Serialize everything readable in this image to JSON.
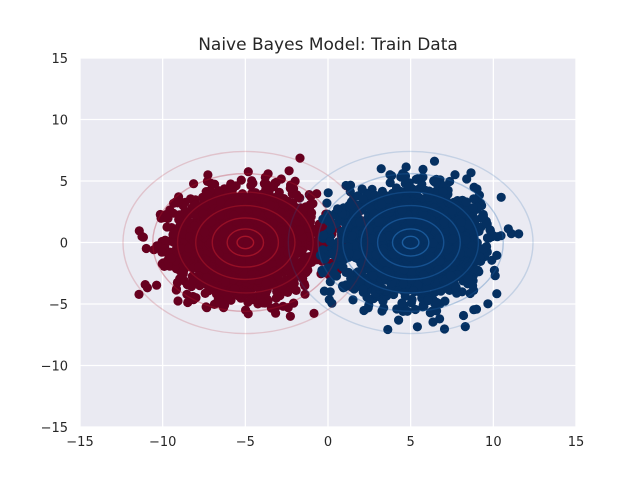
{
  "chart_data": {
    "type": "scatter",
    "title": "Naive Bayes Model: Train Data",
    "xlabel": "",
    "ylabel": "",
    "xlim": [
      -15,
      15
    ],
    "ylim": [
      -15,
      15
    ],
    "xticks": [
      -15,
      -10,
      -5,
      0,
      5,
      10,
      15
    ],
    "yticks": [
      -15,
      -10,
      -5,
      0,
      5,
      10,
      15
    ],
    "xtick_labels": [
      "−15",
      "−10",
      "−5",
      "0",
      "5",
      "10",
      "15"
    ],
    "ytick_labels": [
      "−15",
      "−10",
      "−5",
      "0",
      "5",
      "10",
      "15"
    ],
    "grid": true,
    "background_color": "#eaeaf2",
    "grid_color": "#ffffff",
    "series": [
      {
        "color": "#67001f",
        "center": [
          -5,
          0
        ],
        "spread": [
          2.0,
          2.0
        ],
        "extent_x": [
          -13,
          2
        ],
        "extent_y": [
          -7.5,
          8
        ],
        "contour_color": "#b2182b",
        "contour_radii": [
          0.5,
          1.1,
          2.0,
          3.0,
          4.1,
          5.6,
          7.4
        ]
      },
      {
        "color": "#053061",
        "center": [
          5,
          0
        ],
        "spread": [
          2.0,
          2.0
        ],
        "extent_x": [
          -0.5,
          12.8
        ],
        "extent_y": [
          -8.2,
          9.5
        ],
        "contour_color": "#2166ac",
        "contour_radii": [
          0.5,
          1.1,
          2.0,
          3.0,
          4.1,
          5.6,
          7.4
        ]
      }
    ]
  }
}
